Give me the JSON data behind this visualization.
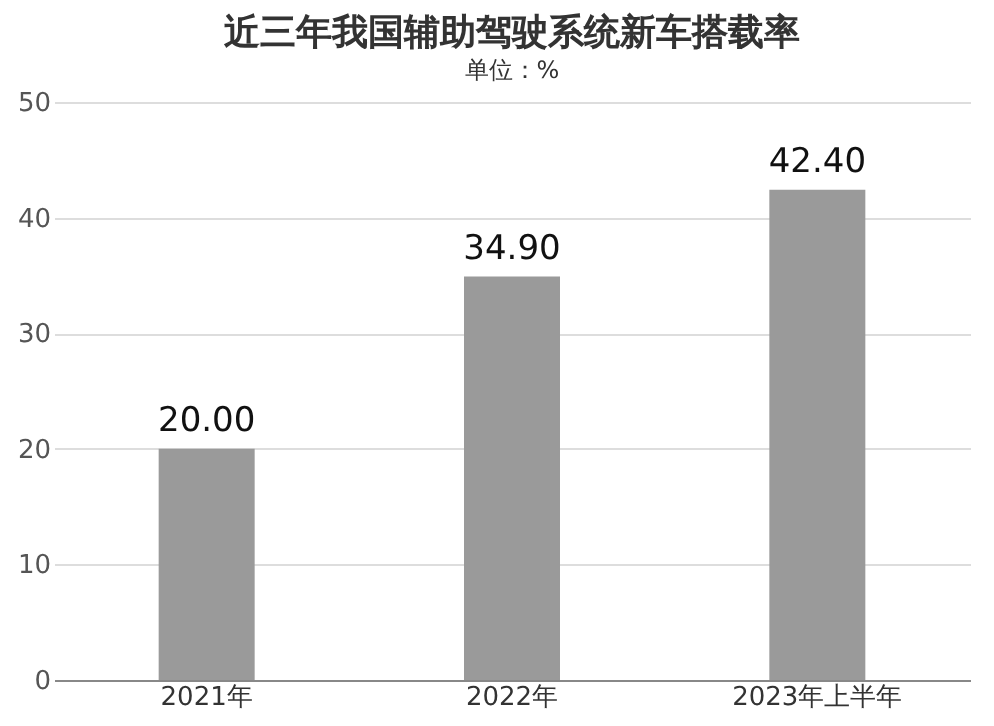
{
  "chart_data": {
    "type": "bar",
    "title": "近三年我国辅助驾驶系统新车搭载率",
    "annotations": [
      "单位：%"
    ],
    "categories": [
      "2021年",
      "2022年",
      "2023年上半年"
    ],
    "values": [
      20.0,
      34.9,
      42.4
    ],
    "value_labels": [
      "20.00",
      "34.90",
      "42.40"
    ],
    "color": "#9a9a9a",
    "ylim": [
      0,
      50
    ],
    "yticks": [
      0,
      10,
      20,
      30,
      40,
      50
    ],
    "grid": "y"
  }
}
